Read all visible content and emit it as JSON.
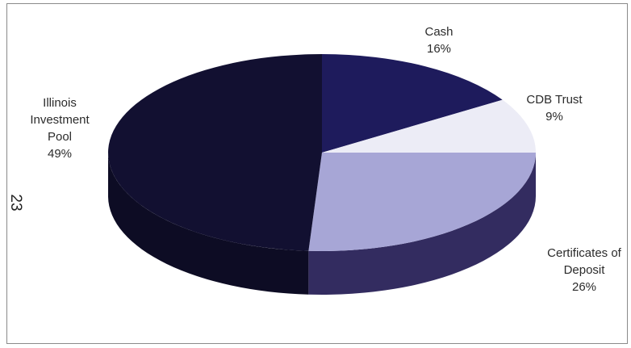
{
  "chart_data": {
    "type": "pie",
    "categories": [
      "Cash",
      "CDB Trust",
      "Certificates of Deposit",
      "Illinois Investment Pool"
    ],
    "values": [
      16,
      9,
      26,
      49
    ],
    "labels": {
      "cash": {
        "name": "Cash",
        "pct": "16%"
      },
      "cdb": {
        "name": "CDB Trust",
        "pct": "9%"
      },
      "cd": {
        "name_lines": [
          "Certificates of",
          "Deposit"
        ],
        "pct": "26%"
      },
      "ilp": {
        "name_lines": [
          "Illinois",
          "Investment",
          "Pool"
        ],
        "pct": "49%"
      }
    },
    "colors": [
      "#1e1b5c",
      "#ececf6",
      "#a7a6d6",
      "#121031"
    ],
    "side_colors": [
      "#171449",
      "#bdbdd0",
      "#332c60",
      "#0d0c24"
    ],
    "title": "",
    "legend": "none"
  },
  "page_number": "23"
}
